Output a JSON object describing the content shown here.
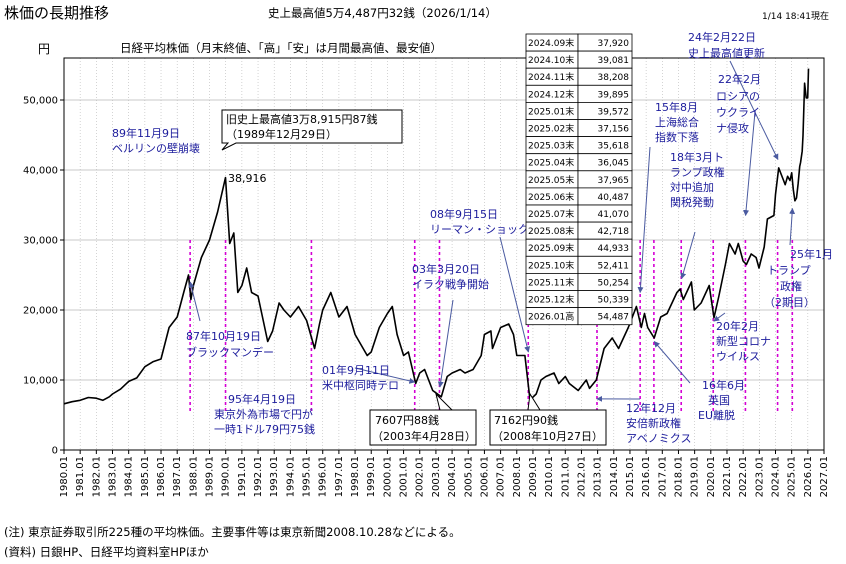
{
  "page_title": "株価の長期推移",
  "record_title": "史上最高値5万4,487円32銭（2026/1/14）",
  "timestamp": "1/14 18:41現在",
  "ylabel": "円",
  "chart_subtitle": "日経平均株価（月末終値、「高」「安」は月間最高値、最安値）",
  "note": "(注) 東京証券取引所225種の平均株価。主要事件等は東京新聞2008.10.28などによる。",
  "source": "(資料) 日銀HP、日経平均資料室HPほか",
  "colors": {
    "line": "#000000",
    "event_marker": "#d400d4",
    "annotation": "#1c1c9c",
    "arrow": "#4a5aa0",
    "grid": "#b8b8b8"
  },
  "chart_data": {
    "type": "line",
    "x_axis_labels": [
      "1980.01",
      "1981.01",
      "1982.01",
      "1983.01",
      "1984.01",
      "1985.01",
      "1986.01",
      "1987.01",
      "1988.01",
      "1989.01",
      "1990.01",
      "1991.01",
      "1992.01",
      "1993.01",
      "1994.01",
      "1995.01",
      "1996.01",
      "1997.01",
      "1998.01",
      "1999.01",
      "2000.01",
      "2001.01",
      "2002.01",
      "2003.01",
      "2004.01",
      "2005.01",
      "2006.01",
      "2007.01",
      "2008.01",
      "2009.01",
      "2010.01",
      "2011.01",
      "2012.01",
      "2013.01",
      "2014.01",
      "2015.01",
      "2016.01",
      "2017.01",
      "2018.01",
      "2019.01",
      "2020.01",
      "2021.01",
      "2022.01",
      "2023.01",
      "2024.01",
      "2025.01",
      "2026.01",
      "2027.01"
    ],
    "y_ticks": [
      "0",
      "10,000",
      "20,000",
      "30,000",
      "40,000",
      "50,000"
    ],
    "ylim": [
      0,
      56000
    ],
    "xlim": [
      1980.0,
      2027.0
    ],
    "grid": true,
    "series": [
      {
        "points": [
          [
            1980.0,
            6600
          ],
          [
            1980.5,
            6900
          ],
          [
            1981.0,
            7100
          ],
          [
            1981.5,
            7500
          ],
          [
            1982.0,
            7400
          ],
          [
            1982.4,
            7100
          ],
          [
            1982.8,
            7600
          ],
          [
            1983.0,
            8000
          ],
          [
            1983.5,
            8700
          ],
          [
            1984.0,
            9800
          ],
          [
            1984.5,
            10300
          ],
          [
            1985.0,
            11900
          ],
          [
            1985.5,
            12600
          ],
          [
            1986.0,
            13000
          ],
          [
            1986.5,
            17500
          ],
          [
            1987.0,
            19000
          ],
          [
            1987.4,
            22500
          ],
          [
            1987.7,
            25000
          ],
          [
            1987.85,
            21500
          ],
          [
            1988.0,
            23500
          ],
          [
            1988.5,
            27500
          ],
          [
            1989.0,
            30000
          ],
          [
            1989.5,
            34000
          ],
          [
            1989.99,
            38916
          ],
          [
            1990.25,
            29500
          ],
          [
            1990.5,
            31000
          ],
          [
            1990.75,
            22500
          ],
          [
            1991.0,
            23500
          ],
          [
            1991.3,
            26000
          ],
          [
            1991.6,
            22500
          ],
          [
            1992.0,
            22000
          ],
          [
            1992.6,
            15500
          ],
          [
            1992.9,
            17000
          ],
          [
            1993.3,
            21000
          ],
          [
            1993.6,
            20000
          ],
          [
            1994.0,
            19000
          ],
          [
            1994.5,
            20500
          ],
          [
            1995.0,
            18500
          ],
          [
            1995.5,
            14500
          ],
          [
            1995.8,
            18000
          ],
          [
            1996.0,
            20000
          ],
          [
            1996.5,
            22500
          ],
          [
            1997.0,
            19000
          ],
          [
            1997.5,
            20500
          ],
          [
            1998.0,
            16500
          ],
          [
            1998.75,
            13500
          ],
          [
            1999.0,
            14000
          ],
          [
            1999.5,
            17500
          ],
          [
            2000.0,
            19500
          ],
          [
            2000.3,
            20500
          ],
          [
            2000.6,
            16500
          ],
          [
            2001.0,
            13500
          ],
          [
            2001.3,
            14000
          ],
          [
            2001.75,
            9500
          ],
          [
            2002.0,
            11000
          ],
          [
            2002.3,
            11500
          ],
          [
            2002.8,
            8500
          ],
          [
            2003.33,
            7607
          ],
          [
            2003.7,
            10500
          ],
          [
            2004.0,
            11000
          ],
          [
            2004.5,
            11500
          ],
          [
            2004.8,
            11000
          ],
          [
            2005.3,
            11500
          ],
          [
            2005.8,
            13500
          ],
          [
            2006.0,
            16500
          ],
          [
            2006.4,
            17000
          ],
          [
            2006.5,
            14500
          ],
          [
            2007.0,
            17500
          ],
          [
            2007.5,
            18000
          ],
          [
            2007.8,
            16500
          ],
          [
            2008.0,
            13500
          ],
          [
            2008.5,
            13500
          ],
          [
            2008.82,
            7162
          ],
          [
            2009.2,
            8000
          ],
          [
            2009.5,
            10000
          ],
          [
            2009.8,
            10500
          ],
          [
            2010.3,
            11000
          ],
          [
            2010.6,
            9500
          ],
          [
            2011.0,
            10500
          ],
          [
            2011.25,
            9500
          ],
          [
            2011.8,
            8500
          ],
          [
            2012.3,
            10000
          ],
          [
            2012.5,
            8800
          ],
          [
            2012.92,
            10000
          ],
          [
            2013.4,
            14500
          ],
          [
            2013.9,
            16000
          ],
          [
            2014.3,
            14500
          ],
          [
            2014.9,
            17500
          ],
          [
            2015.4,
            20500
          ],
          [
            2015.7,
            17500
          ],
          [
            2015.9,
            19500
          ],
          [
            2016.1,
            17500
          ],
          [
            2016.5,
            16000
          ],
          [
            2016.9,
            19000
          ],
          [
            2017.3,
            19500
          ],
          [
            2017.9,
            22500
          ],
          [
            2018.1,
            23000
          ],
          [
            2018.3,
            21500
          ],
          [
            2018.8,
            24000
          ],
          [
            2018.98,
            20000
          ],
          [
            2019.4,
            21000
          ],
          [
            2019.9,
            23500
          ],
          [
            2020.2,
            18900
          ],
          [
            2020.5,
            22000
          ],
          [
            2020.9,
            26500
          ],
          [
            2021.15,
            29500
          ],
          [
            2021.5,
            28000
          ],
          [
            2021.7,
            29500
          ],
          [
            2022.0,
            27000
          ],
          [
            2022.2,
            26500
          ],
          [
            2022.5,
            28000
          ],
          [
            2022.8,
            27500
          ],
          [
            2022.98,
            26000
          ],
          [
            2023.3,
            29000
          ],
          [
            2023.5,
            33000
          ],
          [
            2023.9,
            33500
          ],
          [
            2024.0,
            36500
          ],
          [
            2024.2,
            40300
          ],
          [
            2024.5,
            38500
          ],
          [
            2024.6,
            37900
          ],
          [
            2024.75,
            39100
          ],
          [
            2024.9,
            38500
          ],
          [
            2025.0,
            39600
          ],
          [
            2025.1,
            37200
          ],
          [
            2025.2,
            35600
          ],
          [
            2025.3,
            36000
          ],
          [
            2025.4,
            38000
          ],
          [
            2025.5,
            40500
          ],
          [
            2025.55,
            41100
          ],
          [
            2025.65,
            42700
          ],
          [
            2025.7,
            44900
          ],
          [
            2025.8,
            52400
          ],
          [
            2025.9,
            50300
          ],
          [
            2025.99,
            50300
          ],
          [
            2026.04,
            54487
          ]
        ]
      }
    ],
    "event_markers": [
      1987.8,
      1989.99,
      1995.3,
      2001.69,
      2003.22,
      2008.71,
      2012.96,
      2015.63,
      2016.48,
      2018.17,
      2020.15,
      2022.14,
      2024.13,
      2025.04
    ],
    "annotations": [
      {
        "text": "89年11月9日"
      },
      {
        "text": "ベルリンの壁崩壊"
      },
      {
        "text": "旧史上最高値3万8,915円87銭"
      },
      {
        "text": "（1989年12月29日）"
      },
      {
        "text": "38,916"
      },
      {
        "text": "87年10月19日"
      },
      {
        "text": "ブラックマンデー"
      },
      {
        "text": "95年4月19日"
      },
      {
        "text": "東京外為市場で円が"
      },
      {
        "text": "一時1ドル79円75銭"
      },
      {
        "text": "01年9月11日"
      },
      {
        "text": "米中枢同時テロ"
      },
      {
        "text": "03年3月20日"
      },
      {
        "text": "イラク戦争開始"
      },
      {
        "text": "7607円88銭"
      },
      {
        "text": "（2003年4月28日）"
      },
      {
        "text": "08年9月15日"
      },
      {
        "text": "リーマン・ショック"
      },
      {
        "text": "7162円90銭"
      },
      {
        "text": "（2008年10月27日）"
      },
      {
        "text": "12年12月"
      },
      {
        "text": "安倍新政権"
      },
      {
        "text": "アベノミクス"
      },
      {
        "text": "15年8月"
      },
      {
        "text": "上海総合"
      },
      {
        "text": "指数下落"
      },
      {
        "text": "16年6月"
      },
      {
        "text": "英国"
      },
      {
        "text": "EU離脱"
      },
      {
        "text": "18年3月ト"
      },
      {
        "text": "ランプ政権"
      },
      {
        "text": "対中追加"
      },
      {
        "text": "関税発動"
      },
      {
        "text": "20年2月"
      },
      {
        "text": "新型コロナ"
      },
      {
        "text": "ウイルス"
      },
      {
        "text": "22年2月"
      },
      {
        "text": "ロシアの"
      },
      {
        "text": "ウクライ"
      },
      {
        "text": "ナ侵攻"
      },
      {
        "text": "24年2月22日"
      },
      {
        "text": "史上最高値更新"
      },
      {
        "text": "25年1月"
      },
      {
        "text": "トランプ"
      },
      {
        "text": "政権"
      },
      {
        "text": "（2期目）"
      }
    ],
    "table": [
      {
        "label": "2024.09末",
        "value": "37,920"
      },
      {
        "label": "2024.10末",
        "value": "39,081"
      },
      {
        "label": "2024.11末",
        "value": "38,208"
      },
      {
        "label": "2024.12末",
        "value": "39,895"
      },
      {
        "label": "2025.01末",
        "value": "39,572"
      },
      {
        "label": "2025.02末",
        "value": "37,156"
      },
      {
        "label": "2025.03末",
        "value": "35,618"
      },
      {
        "label": "2025.04末",
        "value": "36,045"
      },
      {
        "label": "2025.05末",
        "value": "37,965"
      },
      {
        "label": "2025.06末",
        "value": "40,487"
      },
      {
        "label": "2025.07末",
        "value": "41,070"
      },
      {
        "label": "2025.08末",
        "value": "42,718"
      },
      {
        "label": "2025.09末",
        "value": "44,933"
      },
      {
        "label": "2025.10末",
        "value": "52,411"
      },
      {
        "label": "2025.11末",
        "value": "50,254"
      },
      {
        "label": "2025.12末",
        "value": "50,339"
      },
      {
        "label": "2026.01高",
        "value": "54,487"
      }
    ]
  }
}
